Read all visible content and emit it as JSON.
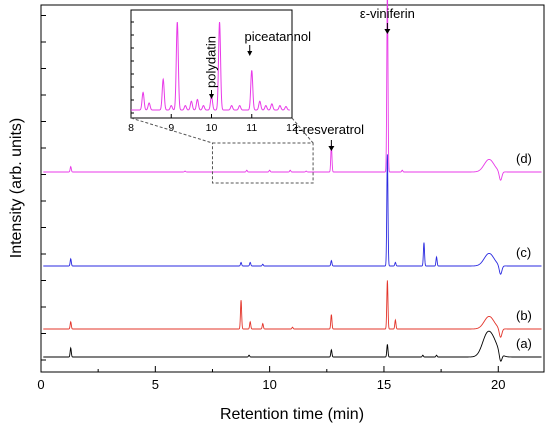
{
  "chart_data": {
    "type": "line",
    "xlabel": "Retention time (min)",
    "ylabel": "Intensity (arb. units)",
    "xlim": [
      0,
      22
    ],
    "x_ticks": [
      0,
      5,
      10,
      15,
      20
    ],
    "series": [
      {
        "name": "(a)",
        "color": "#000000",
        "baseline": 0.0,
        "peaks": [
          [
            1.3,
            0.05
          ],
          [
            9.1,
            0.01
          ],
          [
            12.7,
            0.04
          ],
          [
            15.15,
            0.07
          ],
          [
            16.7,
            0.01
          ],
          [
            17.3,
            0.01
          ],
          [
            19.5,
            0.11
          ],
          [
            19.8,
            0.07
          ]
        ]
      },
      {
        "name": "(b)",
        "color": "#e3342a",
        "baseline": 0.0,
        "peaks": [
          [
            1.3,
            0.04
          ],
          [
            8.75,
            0.16
          ],
          [
            9.15,
            0.04
          ],
          [
            9.7,
            0.03
          ],
          [
            11.0,
            0.01
          ],
          [
            12.7,
            0.08
          ],
          [
            15.15,
            0.27
          ],
          [
            15.5,
            0.05
          ],
          [
            19.6,
            0.07
          ]
        ]
      },
      {
        "name": "(c)",
        "color": "#2a2ae0",
        "baseline": 0.0,
        "peaks": [
          [
            1.3,
            0.04
          ],
          [
            8.75,
            0.02
          ],
          [
            9.15,
            0.02
          ],
          [
            9.7,
            0.01
          ],
          [
            12.7,
            0.03
          ],
          [
            15.15,
            0.62
          ],
          [
            15.5,
            0.02
          ],
          [
            16.75,
            0.13
          ],
          [
            17.3,
            0.05
          ],
          [
            19.6,
            0.07
          ]
        ]
      },
      {
        "name": "(d)",
        "color": "#e83ae8",
        "baseline": 0.0,
        "peaks": [
          [
            1.3,
            0.03
          ],
          [
            6.3,
            0.005
          ],
          [
            9.0,
            0.01
          ],
          [
            10.0,
            0.01
          ],
          [
            10.9,
            0.01
          ],
          [
            11.6,
            0.005
          ],
          [
            12.7,
            0.15
          ],
          [
            15.15,
            1.03
          ],
          [
            15.8,
            0.01
          ],
          [
            19.6,
            0.07
          ]
        ]
      }
    ],
    "annotations": [
      {
        "text": "ε-viniferin",
        "x": 15.15
      },
      {
        "text": "t-resveratrol",
        "x": 12.7
      }
    ],
    "inset": {
      "xlim": [
        8,
        12
      ],
      "x_ticks": [
        8,
        9,
        10,
        11,
        12
      ],
      "source_window": [
        7.5,
        11.9
      ],
      "color": "#e83ae8",
      "peaks": [
        [
          8.3,
          0.2
        ],
        [
          8.45,
          0.08
        ],
        [
          8.8,
          0.35
        ],
        [
          9.0,
          0.05
        ],
        [
          9.15,
          1.0
        ],
        [
          9.35,
          0.05
        ],
        [
          9.5,
          0.1
        ],
        [
          9.65,
          0.12
        ],
        [
          9.8,
          0.05
        ],
        [
          10.0,
          0.16
        ],
        [
          10.2,
          1.0
        ],
        [
          10.5,
          0.05
        ],
        [
          10.7,
          0.05
        ],
        [
          11.0,
          0.45
        ],
        [
          11.2,
          0.1
        ],
        [
          11.35,
          0.05
        ],
        [
          11.5,
          0.07
        ],
        [
          11.7,
          0.05
        ],
        [
          11.85,
          0.04
        ]
      ],
      "annotations": [
        {
          "text": "polydatin",
          "x": 10.0
        },
        {
          "text": "piceatannol",
          "x": 10.95
        }
      ]
    }
  }
}
